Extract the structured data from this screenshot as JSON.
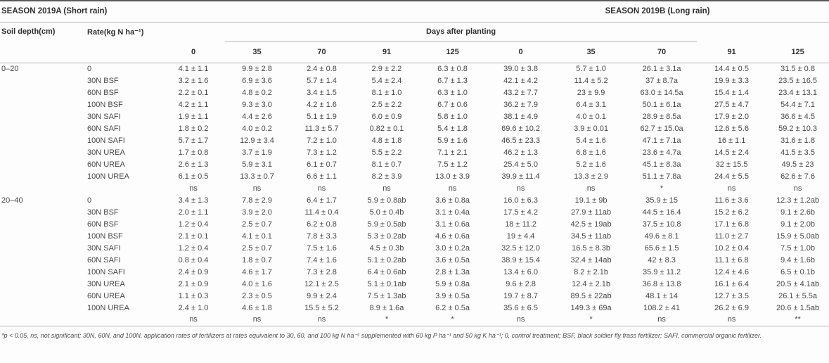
{
  "table": {
    "season_a_header": "SEASON 2019A (Short rain)",
    "season_b_header": "SEASON 2019B (Long rain)",
    "col_soil_depth": "Soil depth(cm)",
    "col_rate": "Rate(kg N ha⁻¹)",
    "days_after_planting_label": "Days after planting",
    "day_columns": [
      "0",
      "35",
      "70",
      "91",
      "125",
      "0",
      "35",
      "70",
      "91",
      "125"
    ],
    "sections": [
      {
        "soil_depth": "0–20",
        "rows": [
          {
            "rate": "0",
            "values": [
              "4.1 ± 1.1",
              "9.9 ± 2.8",
              "2.4 ± 0.8",
              "2.9 ± 2.2",
              "6.3 ± 0.8",
              "39.0 ± 3.8",
              "5.7 ± 1.0",
              "26.1 ± 3.1a",
              "14.4 ± 0.5",
              "31.5 ± 0.8"
            ]
          },
          {
            "rate": "30N BSF",
            "values": [
              "3.2 ± 1.6",
              "6.9 ± 3.6",
              "5.7 ± 1.4",
              "5.4 ± 2.4",
              "6.7 ± 1.3",
              "42.1 ± 4.2",
              "11.4 ± 5.2",
              "37 ± 8.7a",
              "19.9 ± 3.3",
              "23.5 ± 16.5"
            ]
          },
          {
            "rate": "60N BSF",
            "values": [
              "2.2 ± 0.1",
              "4.8 ± 0.2",
              "3.4 ± 1.5",
              "8.1 ± 1.0",
              "6.3 ± 1.0",
              "43.2 ± 7.7",
              "23 ± 9.9",
              "63.0 ± 14.5a",
              "15.4 ± 1.4",
              "23.4 ± 13.1"
            ]
          },
          {
            "rate": "100N BSF",
            "values": [
              "4.2 ± 1.1",
              "9.3 ± 3.0",
              "4.2 ± 1.6",
              "2.5 ± 2.2",
              "6.7 ± 0.6",
              "36.2 ± 7.9",
              "6.4 ± 3.1",
              "50.1 ± 6.1a",
              "27.5 ± 4.7",
              "54.4 ± 7.1"
            ]
          },
          {
            "rate": "30N SAFI",
            "values": [
              "1.9 ± 1.1",
              "4.4 ± 2.6",
              "5.1 ± 1.9",
              "6.0 ± 0.9",
              "5.8 ± 1.0",
              "38.1 ± 4.9",
              "4.0 ± 0.1",
              "28.9 ± 8.5a",
              "17.9 ± 2.0",
              "36.6 ± 4.5"
            ]
          },
          {
            "rate": "60N SAFI",
            "values": [
              "1.8 ± 0.2",
              "4.0 ± 0.2",
              "11.3 ± 5.7",
              "0.82 ± 0.1",
              "5.4 ± 1.8",
              "69.6 ± 10.2",
              "3.9 ± 0.01",
              "62.7 ± 15.0a",
              "12.6 ± 5.6",
              "59.2 ± 10.3"
            ]
          },
          {
            "rate": "100N SAFI",
            "values": [
              "5.7 ± 1.7",
              "12.9 ± 3.4",
              "7.2 ± 1.0",
              "4.8 ± 1.8",
              "5.9 ± 1.6",
              "46.5 ± 23.3",
              "5.4 ± 1.6",
              "47.1 ± 7.1a",
              "16 ± 1.1",
              "31.6 ± 1.8"
            ]
          },
          {
            "rate": "30N UREA",
            "values": [
              "1.7 ± 0.8",
              "3.7 ± 1.9",
              "7.3 ± 1.2",
              "5.5 ± 2.2",
              "7.1 ± 2.1",
              "46.2 ± 1.3",
              "6.8 ± 1.6",
              "23.6 ± 4.7a",
              "14.5 ± 2.4",
              "41.5 ± 3.5"
            ]
          },
          {
            "rate": "60N UREA",
            "values": [
              "2.6 ± 1.3",
              "5.9 ± 3.1",
              "6.1 ± 0.7",
              "8.1 ± 0.7",
              "7.5 ± 1.2",
              "25.4 ± 5.0",
              "5.2 ± 1.6",
              "45.1 ± 8.3a",
              "32 ± 15.5",
              "49.5 ± 23"
            ]
          },
          {
            "rate": "100N UREA",
            "values": [
              "6.1 ± 0.5",
              "13.3 ± 0.7",
              "6.6 ± 1.1",
              "8.2 ± 3.9",
              "13.0 ± 3.9",
              "39.9 ± 11.4",
              "13.3 ± 2.9",
              "51.1 ± 7.8a",
              "24.4 ± 5.5",
              "62.6 ± 7.6"
            ]
          }
        ],
        "significance": [
          "ns",
          "ns",
          "ns",
          "ns",
          "ns",
          "ns",
          "ns",
          "*",
          "ns",
          "ns"
        ]
      },
      {
        "soil_depth": "20–40",
        "rows": [
          {
            "rate": "0",
            "values": [
              "3.4 ± 1.3",
              "7.8 ± 2.9",
              "6.4 ± 1.7",
              "5.9 ± 0.8ab",
              "3.6 ± 0.8a",
              "16.0 ± 6.3",
              "19.1 ± 9b",
              "35.9 ± 15",
              "11.6 ± 3.6",
              "12.3 ± 1.2ab"
            ]
          },
          {
            "rate": "30N BSF",
            "values": [
              "2.0 ± 1.1",
              "3.9 ± 2.0",
              "11.4 ± 0.4",
              "5.0 ± 0.4b",
              "3.1 ± 0.4a",
              "17.5 ± 4.2",
              "27.9 ± 11ab",
              "44.5 ± 16.4",
              "15.2 ± 6.2",
              "9.1 ± 2.6b"
            ]
          },
          {
            "rate": "60N BSF",
            "values": [
              "1.2 ± 0.4",
              "2.5 ± 0.7",
              "6.2 ± 0.8",
              "5.9 ± 0.5ab",
              "3.1 ± 0.6a",
              "18 ± 11.2",
              "42.5 ± 19ab",
              "37.5 ± 10.8",
              "17.1 ± 6.8",
              "9.1 ± 2.0b"
            ]
          },
          {
            "rate": "100N BSF",
            "values": [
              "2.1 ± 0.1",
              "4.1 ± 0.1",
              "7.8 ± 3.3",
              "5.3 ± 0.2ab",
              "4.6 ± 0.6a",
              "19 ± 4.4",
              "34.5 ± 11ab",
              "49.6 ± 8.1",
              "11.0 ± 2.7",
              "15.9 ± 5.0ab"
            ]
          },
          {
            "rate": "30N SAFI",
            "values": [
              "1.2 ± 0.4",
              "2.5 ± 0.7",
              "7.5 ± 1.6",
              "4.5 ± 0.3b",
              "3.0 ± 0.2a",
              "32.5 ± 12.0",
              "16.5 ± 8.3b",
              "65.6 ± 1.5",
              "10.2 ± 0.4",
              "7.5 ± 1.0b"
            ]
          },
          {
            "rate": "60N SAFI",
            "values": [
              "0.8 ± 0.4",
              "1.8 ± 0.7",
              "7.4 ± 1.6",
              "5.1 ± 0.2ab",
              "3.6 ± 0.5a",
              "38.9 ± 15.4",
              "32.4 ± 14ab",
              "42 ± 8.3",
              "11.1 ± 6.8",
              "9.4 ± 1.6b"
            ]
          },
          {
            "rate": "100N SAFI",
            "values": [
              "2.4 ± 0.9",
              "4.6 ± 1.7",
              "7.3 ± 2.8",
              "6.4 ± 0.6ab",
              "2.8 ± 1.3a",
              "13.4 ± 6.0",
              "8.2 ± 2.1b",
              "35.9 ± 11.2",
              "12.4 ± 4.6",
              "6.5 ± 0.1b"
            ]
          },
          {
            "rate": "30N UREA",
            "values": [
              "2.1 ± 0.9",
              "4.0 ± 1.6",
              "12.1 ± 2.5",
              "5.1 ± 0.1ab",
              "5.9 ± 0.8a",
              "9.6 ± 2.8",
              "12.4 ± 2.1b",
              "36.8 ± 13.8",
              "16.1 ± 6.4",
              "20.5 ± 4.1ab"
            ]
          },
          {
            "rate": "60N UREA",
            "values": [
              "1.1 ± 0.3",
              "2.3 ± 0.5",
              "9.9 ± 2.4",
              "7.5 ± 1.3ab",
              "3.9 ± 0.5a",
              "19.7 ± 8.7",
              "89.5 ± 22ab",
              "48.1 ± 14",
              "12.7 ± 3.5",
              "26.1 ± 5.5a"
            ]
          },
          {
            "rate": "100N UREA",
            "values": [
              "2.4 ± 1.0",
              "4.6 ± 1.8",
              "15.5 ± 5.2",
              "8.9 ± 1.6a",
              "6.2 ± 0.5a",
              "35.6 ± 6.5",
              "149.3 ± 69a",
              "108.2 ± 41",
              "26.2 ± 6.9",
              "20.6 ± 1.5ab"
            ]
          }
        ],
        "significance": [
          "ns",
          "ns",
          "ns",
          "*",
          "*",
          "ns",
          "*",
          "ns",
          "ns",
          "**"
        ]
      }
    ]
  },
  "footnote": "*p < 0.05, ns, not significant; 30N, 60N, and 100N, application rates of fertilizers at rates equivalent to 30, 60, and 100 kg N ha⁻¹ supplemented with 60 kg P ha⁻¹ and 50 kg K ha⁻¹; 0, control treatment; BSF, black soldier fly frass fertilizer; SAFI, commercial organic fertilizer."
}
